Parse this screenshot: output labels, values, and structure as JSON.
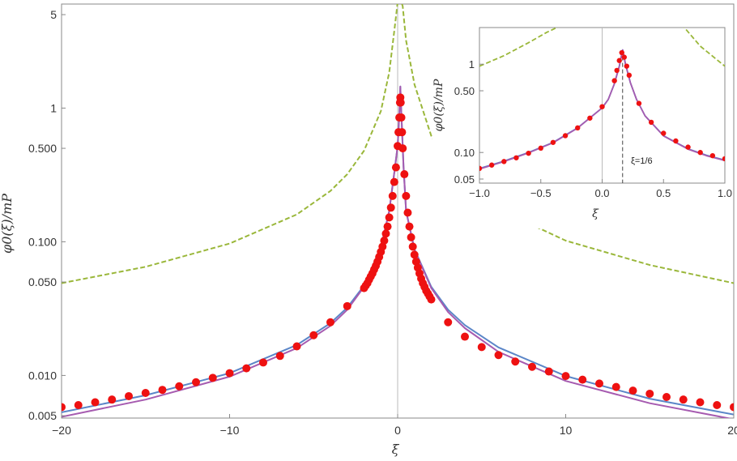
{
  "chart_data": [
    {
      "type": "line",
      "panel": "main",
      "xlabel": "ξ",
      "ylabel": "φ0(ξ)/mP",
      "xlim": [
        -20,
        20
      ],
      "ylim": [
        0.0048,
        6
      ],
      "yscale": "log",
      "xticks": [
        -20,
        -10,
        0,
        10,
        20
      ],
      "xtick_labels": [
        "−20",
        "−10",
        "0",
        "10",
        "20"
      ],
      "yticks": [
        0.005,
        0.01,
        0.05,
        0.1,
        0.5,
        1,
        5
      ],
      "ytick_labels": [
        "0.005",
        "0.010",
        "0.050",
        "0.100",
        "0.500",
        "1",
        "5"
      ],
      "grid": false,
      "vertical_rule_x": 0,
      "series": [
        {
          "style": "dashed",
          "color": "#9ab73a",
          "x": [
            -20,
            -15,
            -10,
            -6,
            -4,
            -3,
            -2,
            -1,
            -0.5,
            -0.2,
            0.02,
            0.16,
            0.3,
            0.5,
            1,
            2,
            3,
            4,
            6,
            10,
            15,
            20
          ],
          "y": [
            0.049,
            0.065,
            0.097,
            0.16,
            0.24,
            0.32,
            0.48,
            0.95,
            1.85,
            3.8,
            6.5,
            6.5,
            5.8,
            3.2,
            1.5,
            0.62,
            0.39,
            0.28,
            0.175,
            0.102,
            0.067,
            0.049
          ]
        },
        {
          "style": "solid",
          "color": "#5b86c8",
          "x": [
            -20,
            -15,
            -10,
            -6,
            -4,
            -3,
            -2,
            -1,
            -0.5,
            -0.2,
            0,
            0.1,
            0.16,
            0.22,
            0.35,
            0.5,
            1,
            2,
            3,
            4,
            6,
            10,
            15,
            20
          ],
          "y": [
            0.0053,
            0.0071,
            0.0104,
            0.0169,
            0.0246,
            0.0322,
            0.047,
            0.091,
            0.17,
            0.33,
            0.52,
            0.9,
            1.45,
            0.9,
            0.36,
            0.17,
            0.088,
            0.046,
            0.031,
            0.0238,
            0.0162,
            0.0099,
            0.0067,
            0.0051
          ]
        },
        {
          "style": "solid",
          "color": "#a65bb0",
          "x": [
            -20,
            -15,
            -10,
            -6,
            -4,
            -3,
            -2,
            -1,
            -0.5,
            -0.2,
            0,
            0.1,
            0.16,
            0.22,
            0.35,
            0.5,
            1,
            2,
            3,
            4,
            6,
            10,
            15,
            20
          ],
          "y": [
            0.0049,
            0.0066,
            0.0098,
            0.016,
            0.0235,
            0.031,
            0.046,
            0.09,
            0.17,
            0.33,
            0.52,
            0.9,
            1.45,
            0.9,
            0.36,
            0.17,
            0.087,
            0.045,
            0.0298,
            0.0226,
            0.015,
            0.0091,
            0.0062,
            0.0047
          ]
        },
        {
          "style": "markers",
          "color": "#ee1111",
          "x": [
            -20,
            -19,
            -18,
            -17,
            -16,
            -15,
            -14,
            -13,
            -12,
            -11,
            -10,
            -9,
            -8,
            -7,
            -6,
            -5,
            -4,
            -3,
            -2,
            -1.9,
            -1.8,
            -1.7,
            -1.6,
            -1.5,
            -1.4,
            -1.3,
            -1.2,
            -1.1,
            -1.0,
            -0.9,
            -0.8,
            -0.7,
            -0.6,
            -0.5,
            -0.4,
            -0.3,
            -0.2,
            -0.1,
            0,
            0.05,
            0.1,
            0.14,
            0.16,
            0.18,
            0.22,
            0.26,
            0.3,
            0.4,
            0.5,
            0.6,
            0.7,
            0.8,
            0.9,
            1.0,
            1.1,
            1.2,
            1.3,
            1.4,
            1.5,
            1.6,
            1.7,
            1.8,
            1.9,
            2,
            3,
            4,
            5,
            6,
            7,
            8,
            9,
            10,
            11,
            12,
            13,
            14,
            15,
            16,
            17,
            18,
            19,
            20
          ],
          "y": [
            0.0058,
            0.006,
            0.0063,
            0.0066,
            0.007,
            0.0074,
            0.0078,
            0.0083,
            0.0089,
            0.0096,
            0.0104,
            0.0113,
            0.0125,
            0.014,
            0.0165,
            0.02,
            0.025,
            0.033,
            0.045,
            0.047,
            0.049,
            0.052,
            0.055,
            0.058,
            0.062,
            0.066,
            0.071,
            0.077,
            0.084,
            0.092,
            0.102,
            0.115,
            0.13,
            0.152,
            0.18,
            0.22,
            0.28,
            0.36,
            0.52,
            0.66,
            0.85,
            1.1,
            1.2,
            1.1,
            0.85,
            0.66,
            0.5,
            0.32,
            0.22,
            0.165,
            0.13,
            0.108,
            0.092,
            0.08,
            0.071,
            0.064,
            0.058,
            0.053,
            0.049,
            0.046,
            0.043,
            0.041,
            0.039,
            0.037,
            0.025,
            0.0195,
            0.0163,
            0.0142,
            0.0127,
            0.0116,
            0.0107,
            0.0099,
            0.0093,
            0.0087,
            0.0082,
            0.0077,
            0.0073,
            0.0069,
            0.0066,
            0.0063,
            0.006,
            0.0058
          ]
        }
      ]
    },
    {
      "type": "line",
      "panel": "inset",
      "xlabel": "ξ",
      "ylabel": "φ0(ξ)/mP",
      "xlim": [
        -1,
        1
      ],
      "ylim": [
        0.045,
        2.6
      ],
      "yscale": "log",
      "xticks": [
        -1,
        -0.5,
        0,
        0.5,
        1
      ],
      "xtick_labels": [
        "−1.0",
        "−0.5",
        "0.0",
        "0.5",
        "1.0"
      ],
      "yticks": [
        0.05,
        0.1,
        0.5,
        1
      ],
      "ytick_labels": [
        "0.05",
        "0.10",
        "0.50",
        "1"
      ],
      "vertical_rule_x": 0,
      "dashed_rule_x": 0.1667,
      "annotation": "ξ=1/6",
      "series": [
        {
          "style": "dashed",
          "color": "#9ab73a",
          "x": [
            -1,
            -0.8,
            -0.6,
            -0.45,
            -0.32,
            0.65,
            0.8,
            1
          ],
          "y": [
            0.95,
            1.25,
            1.75,
            2.3,
            2.8,
            2.8,
            1.6,
            0.95
          ]
        },
        {
          "style": "solid",
          "color": "#5b86c8",
          "x": [
            -1,
            -0.8,
            -0.6,
            -0.4,
            -0.2,
            0,
            0.05,
            0.1,
            0.14,
            0.1667,
            0.19,
            0.23,
            0.28,
            0.35,
            0.5,
            0.7,
            0.85,
            1
          ],
          "y": [
            0.066,
            0.08,
            0.1,
            0.13,
            0.19,
            0.32,
            0.4,
            0.6,
            0.95,
            1.45,
            1.0,
            0.62,
            0.4,
            0.26,
            0.155,
            0.11,
            0.093,
            0.082
          ]
        },
        {
          "style": "solid",
          "color": "#a65bb0",
          "x": [
            -1,
            -0.8,
            -0.6,
            -0.4,
            -0.2,
            0,
            0.05,
            0.1,
            0.14,
            0.1667,
            0.19,
            0.23,
            0.28,
            0.35,
            0.5,
            0.7,
            0.85,
            1
          ],
          "y": [
            0.065,
            0.079,
            0.099,
            0.129,
            0.189,
            0.32,
            0.4,
            0.6,
            0.95,
            1.45,
            1.0,
            0.62,
            0.4,
            0.26,
            0.154,
            0.109,
            0.092,
            0.081
          ]
        },
        {
          "style": "markers",
          "color": "#ee1111",
          "x": [
            -1,
            -0.9,
            -0.8,
            -0.7,
            -0.6,
            -0.5,
            -0.4,
            -0.3,
            -0.2,
            -0.1,
            0,
            0.1,
            0.12,
            0.14,
            0.16,
            0.18,
            0.2,
            0.22,
            0.3,
            0.4,
            0.5,
            0.6,
            0.7,
            0.8,
            0.9,
            1
          ],
          "y": [
            0.066,
            0.072,
            0.079,
            0.087,
            0.098,
            0.112,
            0.13,
            0.155,
            0.19,
            0.245,
            0.33,
            0.65,
            0.85,
            1.1,
            1.35,
            1.2,
            0.95,
            0.75,
            0.36,
            0.22,
            0.165,
            0.135,
            0.115,
            0.1,
            0.092,
            0.085
          ]
        }
      ]
    }
  ]
}
